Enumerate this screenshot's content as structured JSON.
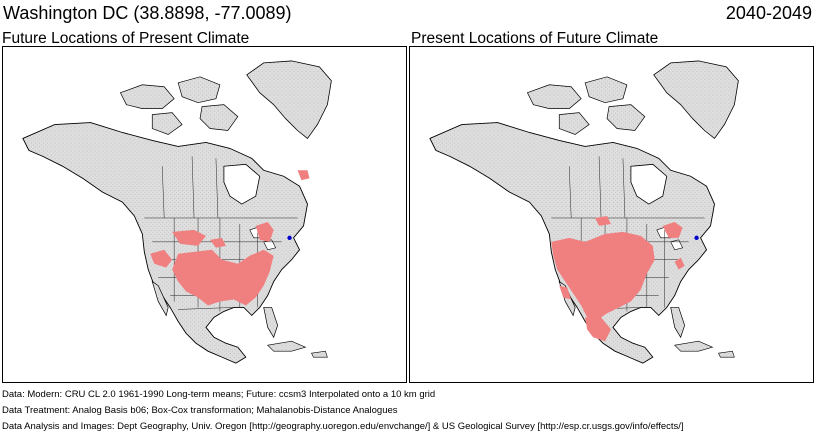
{
  "header": {
    "location": "Washington DC  (38.8898, -77.0089)",
    "period": "2040-2049"
  },
  "panels": [
    {
      "title": "Future Locations of Present Climate"
    },
    {
      "title": "Present Locations of Future Climate"
    }
  ],
  "footer": {
    "data": "Data:  Modern: CRU CL 2.0 1961-1990 Long-term means; Future: ccsm3 Interpolated onto a 10 km grid",
    "treatment": "Data Treatment:  Analog Basis b06; Box-Cox transformation; Mahalanobis-Distance Analogues",
    "analysis": "Data Analysis and Images:  Dept Geography, Univ. Oregon [http://geography.uoregon.edu/envchange/] & US Geological Survey [http://esp.cr.usgs.gov/info/effects/]"
  },
  "colors": {
    "analog": "#f08080",
    "land": "#dcdcdc",
    "target": "#0000cc"
  }
}
